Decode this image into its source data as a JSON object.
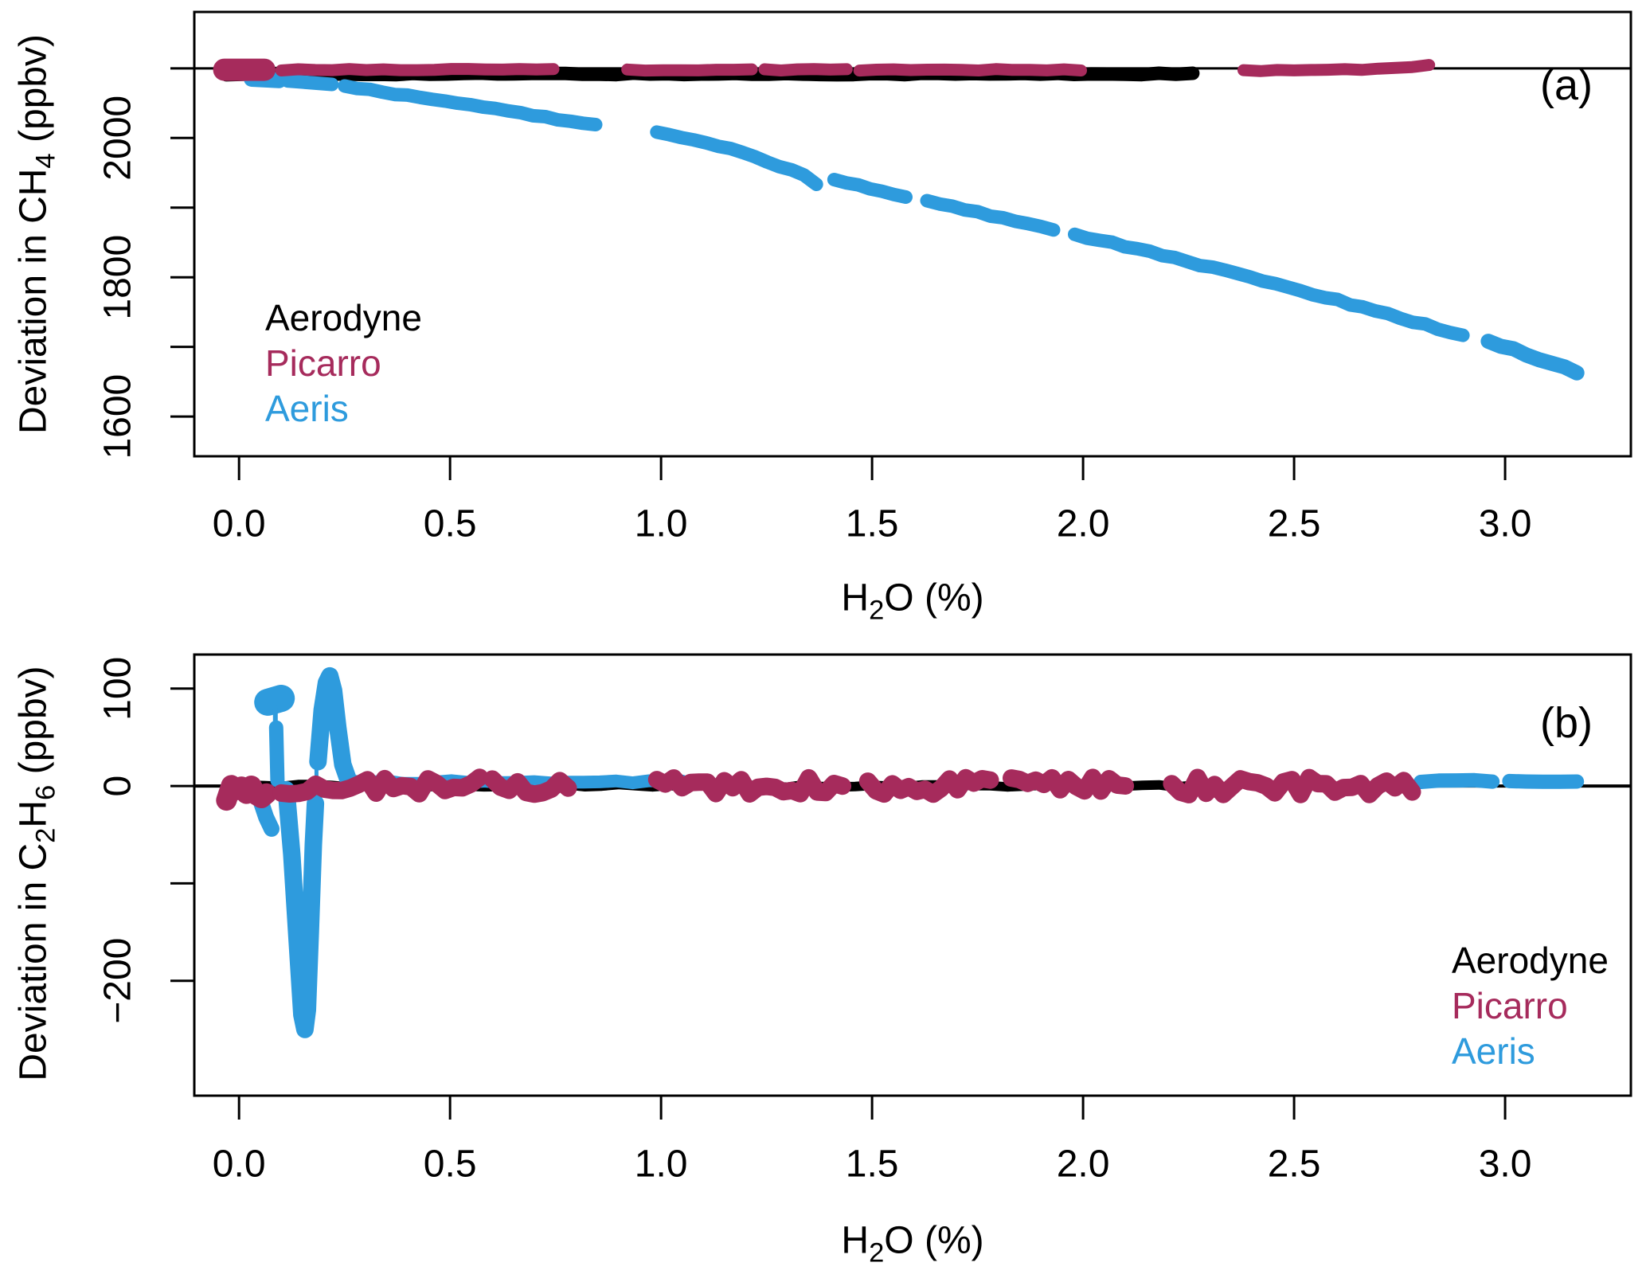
{
  "figure": {
    "background": "#ffffff"
  },
  "colors": {
    "aerodyne": "#000000",
    "picarro": "#A62B5C",
    "aeris": "#2E9BDD"
  },
  "panel_a": {
    "tag": "(a)",
    "xlabel_text": "H2O (%)",
    "ylabel_text": "Deviation in CH4 (ppbv)",
    "xlabel_parts": [
      {
        "t": "H"
      },
      {
        "t": "2",
        "sub": true
      },
      {
        "t": "O (%)"
      }
    ],
    "ylabel_parts": [
      {
        "t": "Deviation in CH"
      },
      {
        "t": "4",
        "sub": true
      },
      {
        "t": " (ppbv)"
      }
    ],
    "legend": {
      "items": [
        {
          "label": "Aerodyne",
          "color_key": "aerodyne"
        },
        {
          "label": "Picarro",
          "color_key": "picarro"
        },
        {
          "label": "Aeris",
          "color_key": "aeris"
        }
      ]
    }
  },
  "panel_b": {
    "tag": "(b)",
    "xlabel_text": "H2O (%)",
    "ylabel_text": "Deviation in C2H6 (ppbv)",
    "xlabel_parts": [
      {
        "t": "H"
      },
      {
        "t": "2",
        "sub": true
      },
      {
        "t": "O (%)"
      }
    ],
    "ylabel_parts": [
      {
        "t": "Deviation in C"
      },
      {
        "t": "2",
        "sub": true
      },
      {
        "t": "H"
      },
      {
        "t": "6",
        "sub": true
      },
      {
        "t": " (ppbv)"
      }
    ],
    "legend": {
      "items": [
        {
          "label": "Aerodyne",
          "color_key": "aerodyne"
        },
        {
          "label": "Picarro",
          "color_key": "picarro"
        },
        {
          "label": "Aeris",
          "color_key": "aeris"
        }
      ]
    }
  },
  "chart_data": [
    {
      "type": "scatter",
      "panel": "a",
      "title": "",
      "xlabel": "H2O (%)",
      "ylabel": "Deviation in CH4 (ppbv)",
      "xlim": [
        -0.106,
        3.298
      ],
      "ylim": [
        1543,
        2181
      ],
      "xticks": [
        {
          "v": 0.0,
          "label": "0.0"
        },
        {
          "v": 0.5,
          "label": "0.5"
        },
        {
          "v": 1.0,
          "label": "1.0"
        },
        {
          "v": 1.5,
          "label": "1.5"
        },
        {
          "v": 2.0,
          "label": "2.0"
        },
        {
          "v": 2.5,
          "label": "2.5"
        },
        {
          "v": 3.0,
          "label": "3.0"
        }
      ],
      "yticks": [
        {
          "v": 2100,
          "label": ""
        },
        {
          "v": 2000,
          "label": "2000"
        },
        {
          "v": 1900,
          "label": ""
        },
        {
          "v": 1800,
          "label": "1800"
        },
        {
          "v": 1700,
          "label": ""
        },
        {
          "v": 1600,
          "label": "1600"
        }
      ],
      "ref_line": 2100,
      "grid": false,
      "legend_position": "inside-left-middle",
      "series": [
        {
          "name": "Aerodyne",
          "color": "#000000",
          "segments": [
            {
              "pts": [
                [
                  -0.03,
                  2092
                ],
                [
                  2.26,
                  2092
                ]
              ],
              "lw": 17,
              "jitter": 1.2,
              "step": 0.04
            }
          ]
        },
        {
          "name": "Aeris",
          "color": "#2E9BDD",
          "segments": [
            {
              "pts": [
                [
                  0.03,
                  2085
                ],
                [
                  0.095,
                  2083
                ]
              ],
              "lw": 20
            },
            {
              "pts": [
                [
                  0.115,
                  2082
                ],
                [
                  0.22,
                  2077
                ]
              ],
              "lw": 17
            },
            {
              "pts": [
                [
                  0.25,
                  2074
                ],
                [
                  0.45,
                  2056
                ],
                [
                  0.65,
                  2037
                ],
                [
                  0.845,
                  2019
                ]
              ],
              "lw": 17,
              "jitter": 1.5,
              "step": 0.03
            },
            {
              "pts": [
                [
                  0.99,
                  2008
                ],
                [
                  1.1,
                  1995
                ],
                [
                  1.22,
                  1974
                ],
                [
                  1.34,
                  1946
                ],
                [
                  1.368,
                  1934
                ]
              ],
              "lw": 17,
              "jitter": 1.5,
              "step": 0.03
            },
            {
              "pts": [
                [
                  1.41,
                  1940
                ],
                [
                  1.58,
                  1916
                ]
              ],
              "lw": 17,
              "jitter": 1.5,
              "step": 0.03
            },
            {
              "pts": [
                [
                  1.63,
                  1909
                ],
                [
                  1.78,
                  1889
                ],
                [
                  1.93,
                  1869
                ]
              ],
              "lw": 17,
              "jitter": 1.5,
              "step": 0.03
            },
            {
              "pts": [
                [
                  1.98,
                  1862
                ],
                [
                  2.2,
                  1830
                ],
                [
                  2.4,
                  1799
                ],
                [
                  2.6,
                  1767
                ],
                [
                  2.8,
                  1734
                ],
                [
                  2.9,
                  1717
                ]
              ],
              "lw": 17,
              "jitter": 1.8,
              "step": 0.03
            },
            {
              "pts": [
                [
                  2.96,
                  1707
                ],
                [
                  3.05,
                  1690
                ],
                [
                  3.17,
                  1663
                ]
              ],
              "lw": 19,
              "jitter": 1.8,
              "step": 0.03
            }
          ]
        },
        {
          "name": "Picarro",
          "color": "#A62B5C",
          "segments": [
            {
              "pts": [
                [
                  -0.035,
                  2098
                ],
                [
                  0.06,
                  2098
                ]
              ],
              "lw": 28
            },
            {
              "pts": [
                [
                  0.1,
                  2098
                ],
                [
                  0.745,
                  2098
                ]
              ],
              "lw": 15,
              "jitter": 1.2,
              "step": 0.04
            },
            {
              "pts": [
                [
                  0.92,
                  2098
                ],
                [
                  1.215,
                  2098
                ]
              ],
              "lw": 15,
              "jitter": 1.2,
              "step": 0.04
            },
            {
              "pts": [
                [
                  1.245,
                  2098
                ],
                [
                  1.44,
                  2098
                ]
              ],
              "lw": 15,
              "jitter": 1.2,
              "step": 0.04
            },
            {
              "pts": [
                [
                  1.47,
                  2098
                ],
                [
                  1.995,
                  2098
                ]
              ],
              "lw": 15,
              "jitter": 1.2,
              "step": 0.04
            },
            {
              "pts": [
                [
                  2.38,
                  2097
                ],
                [
                  2.62,
                  2098
                ],
                [
                  2.76,
                  2101
                ],
                [
                  2.82,
                  2104
                ]
              ],
              "lw": 15,
              "jitter": 1.2,
              "step": 0.04
            }
          ]
        }
      ]
    },
    {
      "type": "scatter",
      "panel": "b",
      "title": "",
      "xlabel": "H2O (%)",
      "ylabel": "Deviation in C2H6 (ppbv)",
      "xlim": [
        -0.106,
        3.298
      ],
      "ylim": [
        -318,
        135
      ],
      "xticks": [
        {
          "v": 0.0,
          "label": "0.0"
        },
        {
          "v": 0.5,
          "label": "0.5"
        },
        {
          "v": 1.0,
          "label": "1.0"
        },
        {
          "v": 1.5,
          "label": "1.5"
        },
        {
          "v": 2.0,
          "label": "2.0"
        },
        {
          "v": 2.5,
          "label": "2.5"
        },
        {
          "v": 3.0,
          "label": "3.0"
        }
      ],
      "yticks": [
        {
          "v": 100,
          "label": "100"
        },
        {
          "v": 0,
          "label": "0"
        },
        {
          "v": -100,
          "label": ""
        },
        {
          "v": -200,
          "label": "−200"
        }
      ],
      "ref_line": 0,
      "grid": false,
      "legend_position": "inside-right-bottom",
      "series": [
        {
          "name": "Aerodyne",
          "color": "#000000",
          "segments": [
            {
              "pts": [
                [
                  -0.02,
                  0
                ],
                [
                  2.26,
                  0
                ]
              ],
              "lw": 12,
              "jitter": 1.5,
              "step": 0.04
            }
          ]
        },
        {
          "name": "Aeris",
          "color": "#2E9BDD",
          "segments": [
            {
              "pts": [
                [
                  0.27,
                  4
                ],
                [
                  1.05,
                  4
                ]
              ],
              "lw": 16,
              "jitter": 1.5,
              "step": 0.04
            },
            {
              "pts": [
                [
                  2.8,
                  5
                ],
                [
                  2.97,
                  5
                ]
              ],
              "lw": 18,
              "jitter": 1.0,
              "step": 0.04
            },
            {
              "pts": [
                [
                  3.01,
                  5
                ],
                [
                  3.17,
                  5
                ]
              ],
              "lw": 18,
              "jitter": 1.0,
              "step": 0.04
            },
            {
              "pts": [
                [
                  0.068,
                  86
                ],
                [
                  0.1,
                  90
                ]
              ],
              "lw": 34
            },
            {
              "pts": [
                [
                  0.086,
                  80
                ],
                [
                  0.086,
                  58
                ]
              ],
              "lw": 6
            },
            {
              "pts": [
                [
                  0.088,
                  60
                ],
                [
                  0.091,
                  6
                ]
              ],
              "lw": 18
            },
            {
              "pts": [
                [
                  0.05,
                  -14
                ],
                [
                  0.064,
                  -32
                ],
                [
                  0.077,
                  -44
                ]
              ],
              "lw": 20
            },
            {
              "pts": [
                [
                  0.112,
                  -4
                ],
                [
                  0.125,
                  -70
                ],
                [
                  0.138,
                  -160
                ],
                [
                  0.149,
                  -235
                ],
                [
                  0.156,
                  -250
                ],
                [
                  0.162,
                  -230
                ],
                [
                  0.169,
                  -150
                ],
                [
                  0.176,
                  -60
                ],
                [
                  0.181,
                  -18
                ]
              ],
              "lw": 22
            },
            {
              "pts": [
                [
                  0.1835,
                  -130
                ],
                [
                  0.1835,
                  75
                ]
              ],
              "lw": 5
            },
            {
              "pts": [
                [
                  0.187,
                  25
                ],
                [
                  0.197,
                  78
                ],
                [
                  0.207,
                  106
                ],
                [
                  0.215,
                  113
                ],
                [
                  0.224,
                  98
                ],
                [
                  0.234,
                  60
                ],
                [
                  0.246,
                  22
                ],
                [
                  0.259,
                  6
                ]
              ],
              "lw": 22
            }
          ]
        },
        {
          "name": "Picarro",
          "color": "#A62B5C",
          "segments": [
            {
              "pts": [
                [
                  -0.03,
                  0
                ],
                [
                  0.065,
                  0
                ]
              ],
              "lw": 26,
              "jitter": 16,
              "step": 0.012
            },
            {
              "pts": [
                [
                  0.1,
                  0
                ],
                [
                  0.57,
                  0
                ]
              ],
              "lw": 22,
              "jitter": 9,
              "step": 0.02
            },
            {
              "pts": [
                [
                  0.6,
                  0
                ],
                [
                  0.78,
                  0
                ]
              ],
              "lw": 22,
              "jitter": 9,
              "step": 0.02
            },
            {
              "pts": [
                [
                  0.99,
                  0
                ],
                [
                  1.43,
                  0
                ]
              ],
              "lw": 22,
              "jitter": 9,
              "step": 0.02
            },
            {
              "pts": [
                [
                  1.49,
                  0
                ],
                [
                  1.78,
                  0
                ]
              ],
              "lw": 22,
              "jitter": 9,
              "step": 0.02
            },
            {
              "pts": [
                [
                  1.83,
                  0
                ],
                [
                  2.1,
                  0
                ]
              ],
              "lw": 22,
              "jitter": 9,
              "step": 0.02
            },
            {
              "pts": [
                [
                  2.21,
                  0
                ],
                [
                  2.78,
                  0
                ]
              ],
              "lw": 22,
              "jitter": 9,
              "step": 0.02
            }
          ]
        }
      ]
    }
  ]
}
